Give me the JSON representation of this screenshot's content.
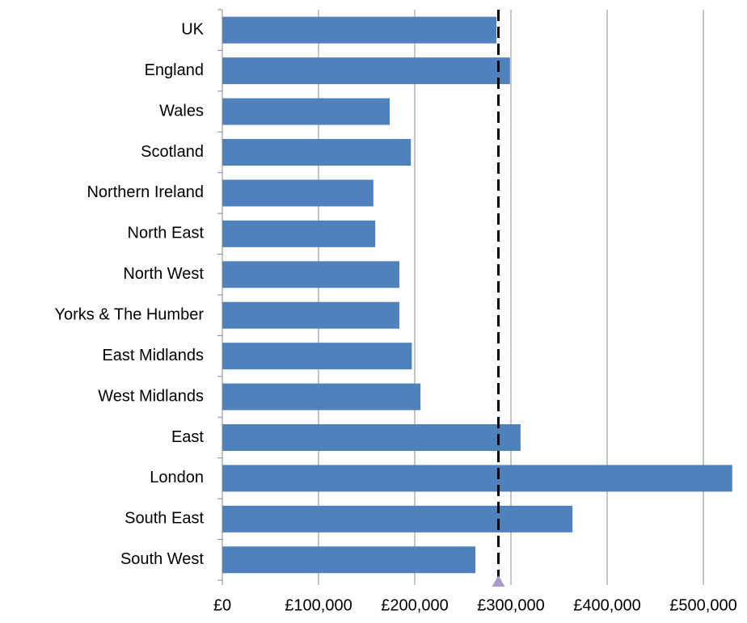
{
  "chart_data": {
    "type": "bar",
    "orientation": "horizontal",
    "categories": [
      "UK",
      "England",
      "Wales",
      "Scotland",
      "Northern Ireland",
      "North East",
      "North West",
      "Yorks & The Humber",
      "East Midlands",
      "West Midlands",
      "East",
      "London",
      "South East",
      "South West"
    ],
    "values": [
      285000,
      299000,
      174000,
      196000,
      157000,
      159000,
      184000,
      184000,
      197000,
      206000,
      310000,
      530000,
      364000,
      263000
    ],
    "color": "#4f81bd",
    "xlim": [
      0,
      540000
    ],
    "xticks": [
      {
        "value": 0,
        "label": "£0"
      },
      {
        "value": 100000,
        "label": "£100,000"
      },
      {
        "value": 200000,
        "label": "£200,000"
      },
      {
        "value": 300000,
        "label": "£300,000"
      },
      {
        "value": 400000,
        "label": "£400,000"
      },
      {
        "value": 500000,
        "label": "£500,000"
      }
    ],
    "grid": true,
    "reference_line": {
      "value": 287000,
      "color": "#000000",
      "marker_color": "#a99bd0"
    }
  }
}
